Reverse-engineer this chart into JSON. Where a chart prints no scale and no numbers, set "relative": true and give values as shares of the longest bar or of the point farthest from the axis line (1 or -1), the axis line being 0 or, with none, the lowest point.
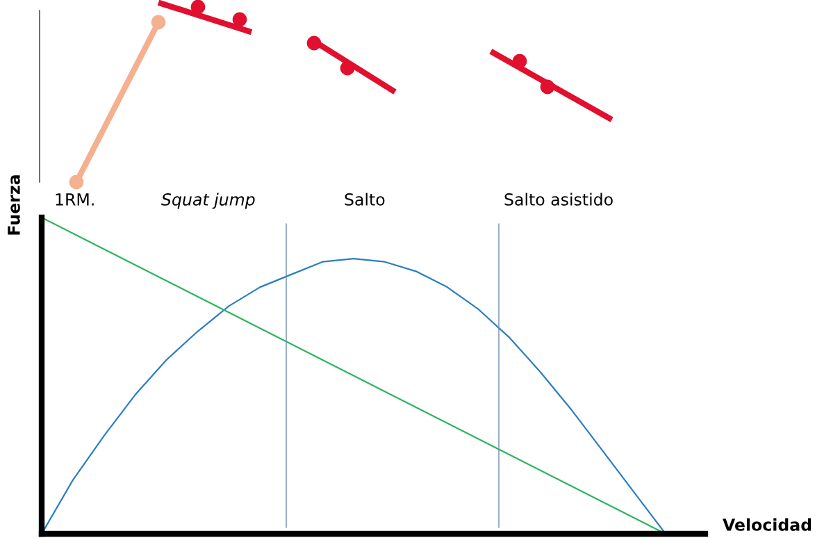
{
  "chart_data": {
    "type": "line",
    "relative": true,
    "xlabel": "Velocidad",
    "ylabel": "Fuerza",
    "categories": [
      null,
      null,
      null,
      null,
      null,
      null,
      null,
      null,
      null,
      null,
      null,
      null,
      null,
      null,
      null,
      null,
      null,
      null,
      null,
      null,
      null
    ],
    "series": [
      {
        "color": "#2a7fc0",
        "values": [
          0,
          0.17,
          0.31,
          0.44,
          0.55,
          0.64,
          0.72,
          0.78,
          0.82,
          0.86,
          0.87,
          0.86,
          0.83,
          0.78,
          0.71,
          0.62,
          0.51,
          0.39,
          0.26,
          0.13,
          0
        ]
      },
      {
        "color": "#2db55d",
        "values": [
          1,
          0.95,
          0.9,
          0.85,
          0.8,
          0.75,
          0.7,
          0.65,
          0.6,
          0.55,
          0.5,
          0.45,
          0.4,
          0.35,
          0.3,
          0.25,
          0.2,
          0.15,
          0.1,
          0.05,
          0
        ]
      }
    ],
    "annotations": [
      "1RM.",
      "Squat jump",
      "Salto",
      "Salto asistido"
    ],
    "legend": false,
    "marker": "none",
    "line_style": "solid"
  }
}
